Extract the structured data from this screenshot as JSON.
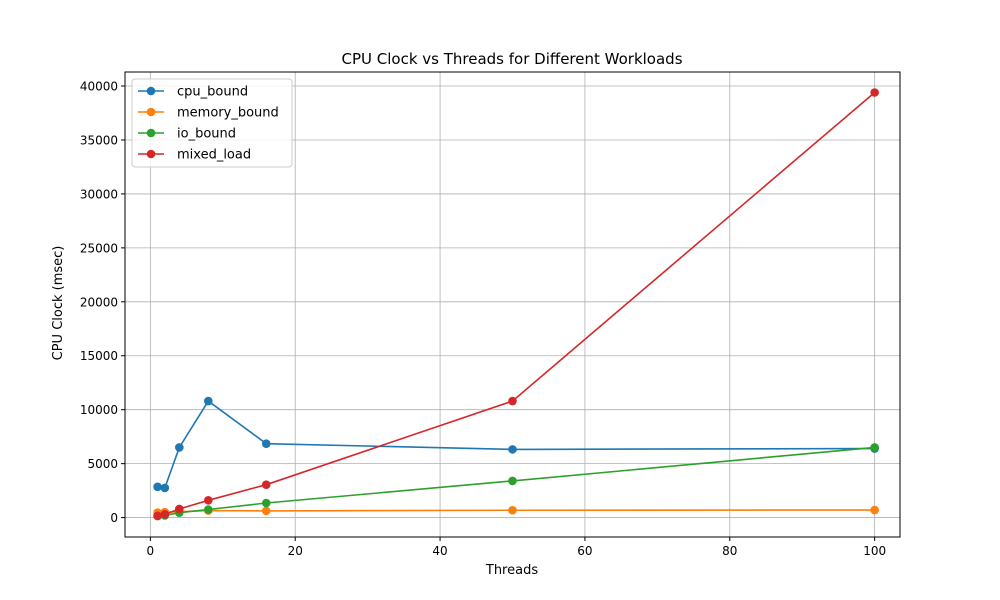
{
  "chart_data": {
    "type": "line",
    "title": "CPU Clock vs Threads for Different Workloads",
    "xlabel": "Threads",
    "ylabel": "CPU Clock (msec)",
    "xlim": [
      -3.5,
      103.5
    ],
    "ylim": [
      -1800,
      41300
    ],
    "xticks": [
      0,
      20,
      40,
      60,
      80,
      100
    ],
    "yticks": [
      0,
      5000,
      10000,
      15000,
      20000,
      25000,
      30000,
      35000,
      40000
    ],
    "grid": true,
    "legend_position": "top-left",
    "x": [
      1,
      2,
      4,
      8,
      16,
      50,
      100
    ],
    "series": [
      {
        "name": "cpu_bound",
        "color": "#1f77b4",
        "values": [
          2850,
          2750,
          6500,
          10800,
          6850,
          6320,
          6400
        ]
      },
      {
        "name": "memory_bound",
        "color": "#ff7f0e",
        "values": [
          450,
          500,
          550,
          650,
          620,
          680,
          700
        ]
      },
      {
        "name": "io_bound",
        "color": "#2ca02c",
        "values": [
          150,
          200,
          450,
          750,
          1350,
          3400,
          6500
        ]
      },
      {
        "name": "mixed_load",
        "color": "#d62728",
        "values": [
          150,
          300,
          800,
          1600,
          3050,
          10800,
          39400
        ]
      }
    ]
  }
}
